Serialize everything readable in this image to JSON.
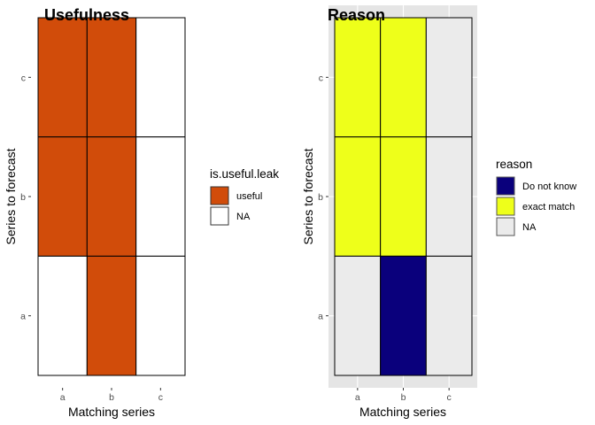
{
  "chart_data": [
    {
      "type": "heatmap",
      "title": "Usefulness",
      "xlabel": "Matching series",
      "ylabel": "Series to forecast",
      "x_categories": [
        "a",
        "b",
        "c"
      ],
      "y_categories": [
        "a",
        "b",
        "c"
      ],
      "background": "white",
      "legend": {
        "title": "is.useful.leak",
        "placement": "right",
        "entries": [
          {
            "label": "useful",
            "color": "#D14C0A"
          },
          {
            "label": "NA",
            "color": "#FFFFFF"
          }
        ]
      },
      "cells": [
        {
          "x": "a",
          "y": "c",
          "value": "useful"
        },
        {
          "x": "b",
          "y": "c",
          "value": "useful"
        },
        {
          "x": "c",
          "y": "c",
          "value": "NA"
        },
        {
          "x": "a",
          "y": "b",
          "value": "useful"
        },
        {
          "x": "b",
          "y": "b",
          "value": "useful"
        },
        {
          "x": "c",
          "y": "b",
          "value": "NA"
        },
        {
          "x": "a",
          "y": "a",
          "value": "NA"
        },
        {
          "x": "b",
          "y": "a",
          "value": "useful"
        },
        {
          "x": "c",
          "y": "a",
          "value": "NA"
        }
      ]
    },
    {
      "type": "heatmap",
      "title": "Reason",
      "xlabel": "Matching series",
      "ylabel": "Series to forecast",
      "x_categories": [
        "a",
        "b",
        "c"
      ],
      "y_categories": [
        "a",
        "b",
        "c"
      ],
      "background": "grey",
      "legend": {
        "title": "reason",
        "placement": "right",
        "entries": [
          {
            "label": "Do not know",
            "color": "#0A007C"
          },
          {
            "label": "exact match",
            "color": "#EEFF1A"
          },
          {
            "label": "NA",
            "color": "#EBEBEB"
          }
        ]
      },
      "cells": [
        {
          "x": "a",
          "y": "c",
          "value": "exact match"
        },
        {
          "x": "b",
          "y": "c",
          "value": "exact match"
        },
        {
          "x": "c",
          "y": "c",
          "value": "NA"
        },
        {
          "x": "a",
          "y": "b",
          "value": "exact match"
        },
        {
          "x": "b",
          "y": "b",
          "value": "exact match"
        },
        {
          "x": "c",
          "y": "b",
          "value": "NA"
        },
        {
          "x": "a",
          "y": "a",
          "value": "NA"
        },
        {
          "x": "b",
          "y": "a",
          "value": "Do not know"
        },
        {
          "x": "c",
          "y": "a",
          "value": "NA"
        }
      ]
    }
  ]
}
